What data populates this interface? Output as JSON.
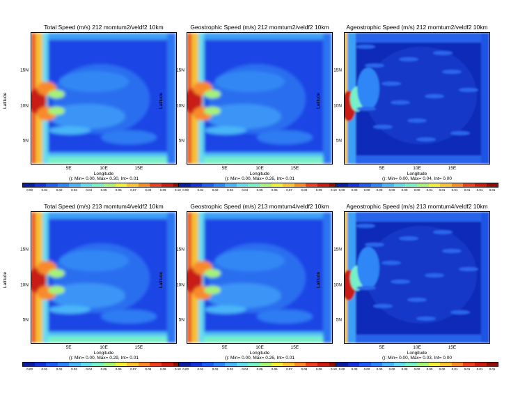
{
  "colorbar_colors": [
    "#0b1f9e",
    "#1533d9",
    "#1e5cf2",
    "#2d86f7",
    "#4ab5f8",
    "#63dcf2",
    "#77f0c8",
    "#a6f27a",
    "#eef03c",
    "#fbc436",
    "#f78a2a",
    "#e8431e",
    "#c81e12",
    "#8c0f0a"
  ],
  "chart_data": [
    {
      "type": "heatmap",
      "title": "Total Speed (m/s) 212 momtum2/veldf2 10km",
      "xlabel": "Longitude",
      "ylabel": "Latitude",
      "x_ticks": [
        "5E",
        "10E",
        "15E"
      ],
      "y_ticks": [
        "15N",
        "10N",
        "5N"
      ],
      "stats": "(): Min= 0.00, Max= 0.30, Int= 0.01",
      "colorbar_labels": [
        "0.00",
        "0.01",
        "0.02",
        "0.03",
        "0.04",
        "0.05",
        "0.06",
        "0.07",
        "0.08",
        "0.09",
        "0.10"
      ],
      "min": 0.0,
      "max": 0.3,
      "interval": 0.01
    },
    {
      "type": "heatmap",
      "title": "Geostrophic Speed (m/s) 212 momtum2/veldf2 10km",
      "xlabel": "Longitude",
      "ylabel": "Latitude",
      "x_ticks": [
        "5E",
        "10E",
        "15E"
      ],
      "y_ticks": [
        "15N",
        "10N",
        "5N"
      ],
      "stats": "(): Min= 0.00, Max= 0.26, Int= 0.01",
      "colorbar_labels": [
        "0.00",
        "0.01",
        "0.02",
        "0.03",
        "0.04",
        "0.05",
        "0.06",
        "0.07",
        "0.08",
        "0.09",
        "0.10"
      ],
      "min": 0.0,
      "max": 0.26,
      "interval": 0.01
    },
    {
      "type": "heatmap",
      "title": "Ageostrophic Speed (m/s) 212 momtum2/veldf2 10km",
      "xlabel": "Longitude",
      "ylabel": "Latitude",
      "x_ticks": [
        "5E",
        "10E",
        "15E"
      ],
      "y_ticks": [
        "15N",
        "10N",
        "5N"
      ],
      "stats": "(): Min= 0.00, Max= 0.04, Int= 0.00",
      "colorbar_labels": [
        "0.00",
        "0.00",
        "0.00",
        "0.00",
        "0.00",
        "0.00",
        "0.00",
        "0.01",
        "0.01",
        "0.01",
        "0.01",
        "0.01",
        "0.01"
      ],
      "min": 0.0,
      "max": 0.04,
      "interval": 0.0
    },
    {
      "type": "heatmap",
      "title": "Total Speed (m/s) 213 momtum4/veldf2 10km",
      "xlabel": "Longitude",
      "ylabel": "Latitude",
      "x_ticks": [
        "5E",
        "10E",
        "15E"
      ],
      "y_ticks": [
        "15N",
        "10N",
        "5N"
      ],
      "stats": "(): Min= 0.00, Max= 0.29, Int= 0.01",
      "colorbar_labels": [
        "0.00",
        "0.01",
        "0.02",
        "0.03",
        "0.04",
        "0.05",
        "0.06",
        "0.07",
        "0.08",
        "0.09",
        "0.10"
      ],
      "min": 0.0,
      "max": 0.29,
      "interval": 0.01
    },
    {
      "type": "heatmap",
      "title": "Geostrophic Speed (m/s) 213 momtum4/veldf2 10km",
      "xlabel": "Longitude",
      "ylabel": "Latitude",
      "x_ticks": [
        "5E",
        "10E",
        "15E"
      ],
      "y_ticks": [
        "15N",
        "10N",
        "5N"
      ],
      "stats": "(): Min= 0.00, Max= 0.26, Int= 0.01",
      "colorbar_labels": [
        "0.00",
        "0.01",
        "0.02",
        "0.03",
        "0.04",
        "0.05",
        "0.06",
        "0.07",
        "0.08",
        "0.09",
        "0.10"
      ],
      "min": 0.0,
      "max": 0.26,
      "interval": 0.01
    },
    {
      "type": "heatmap",
      "title": "Ageostrophic Speed (m/s) 213 momtum4/veldf2 10km",
      "xlabel": "Longitude",
      "ylabel": "Latitude",
      "x_ticks": [
        "5E",
        "10E",
        "15E"
      ],
      "y_ticks": [
        "15N",
        "10N",
        "5N"
      ],
      "stats": "(): Min= 0.00, Max= 0.03, Int= 0.00",
      "colorbar_labels": [
        "0.00",
        "0.00",
        "0.00",
        "0.00",
        "0.00",
        "0.00",
        "0.00",
        "0.00",
        "0.00",
        "0.01",
        "0.01",
        "0.01",
        "0.01"
      ],
      "min": 0.0,
      "max": 0.03,
      "interval": 0.0
    }
  ]
}
